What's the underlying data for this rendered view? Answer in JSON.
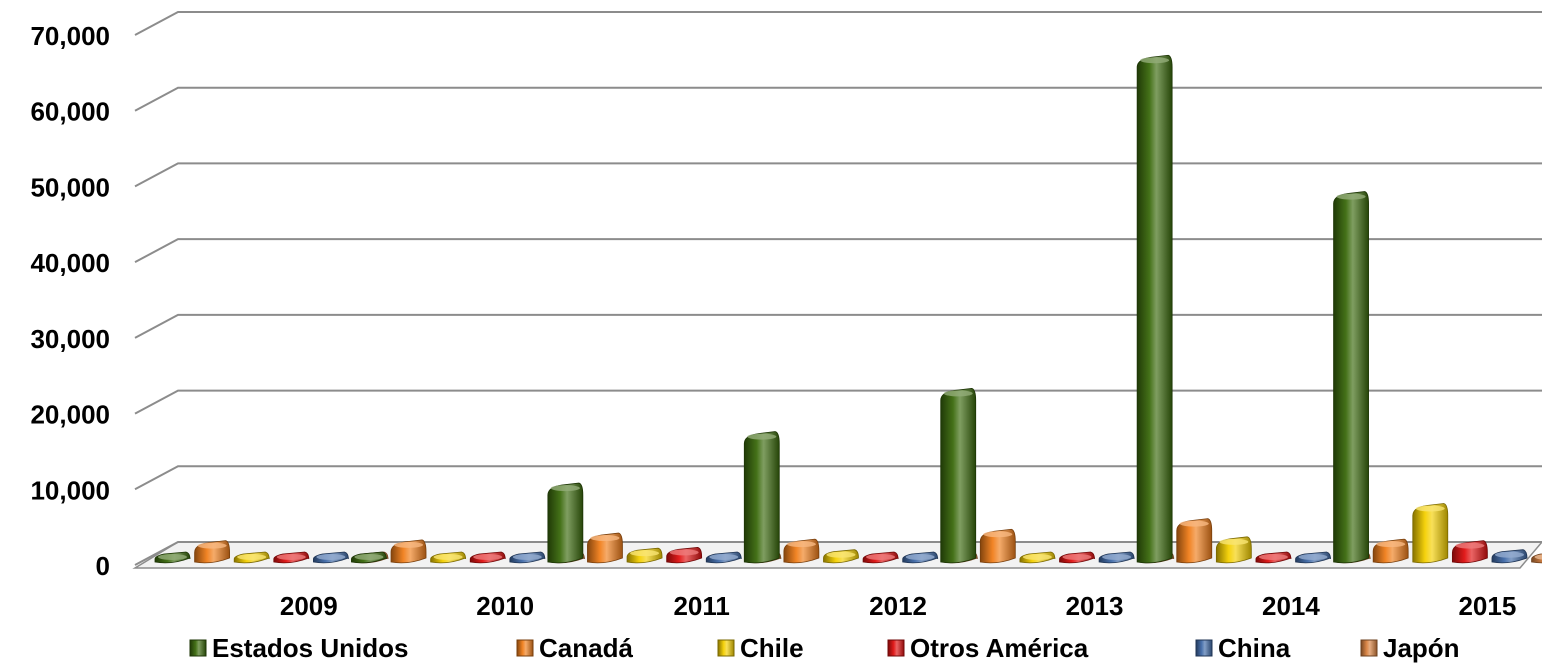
{
  "chart_data": {
    "type": "bar",
    "title": "",
    "xlabel": "",
    "ylabel": "",
    "categories": [
      "2009",
      "2010",
      "2011",
      "2012",
      "2013",
      "2014",
      "2015"
    ],
    "ylim": [
      0,
      70000
    ],
    "yticks": [
      0,
      10000,
      20000,
      30000,
      40000,
      50000,
      60000,
      70000
    ],
    "ytick_labels": [
      "0",
      "10,000",
      "20,000",
      "30,000",
      "40,000",
      "50,000",
      "60,000",
      "70,000"
    ],
    "grid": true,
    "legend_position": "bottom",
    "three_d": true,
    "series": [
      {
        "name": "Estados Unidos",
        "color": "#3a6a0c",
        "values": [
          100,
          150,
          9500,
          16300,
          22000,
          66000,
          48000
        ]
      },
      {
        "name": "Canadá",
        "color": "#f07d1a",
        "values": [
          1900,
          2000,
          2900,
          2100,
          3400,
          4800,
          2100
        ]
      },
      {
        "name": "Chile",
        "color": "#f4d000",
        "values": [
          300,
          300,
          900,
          700,
          400,
          2400,
          6800
        ]
      },
      {
        "name": "Otros América",
        "color": "#e01010",
        "values": [
          200,
          200,
          1000,
          300,
          200,
          200,
          1900
        ]
      },
      {
        "name": "China",
        "color": "#3f6aa8",
        "values": [
          100,
          100,
          100,
          100,
          100,
          100,
          700
        ]
      },
      {
        "name": "Japón",
        "color": "#d9813e",
        "values": [
          100,
          100,
          100,
          100,
          100,
          100,
          100
        ]
      }
    ]
  }
}
